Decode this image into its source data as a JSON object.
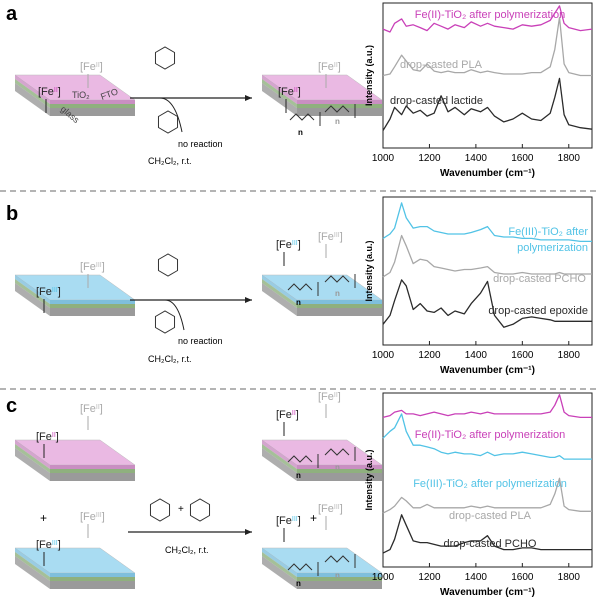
{
  "panel_labels": [
    "a",
    "b",
    "c"
  ],
  "schemes": [
    {
      "fe_labels": [
        [
          "[Fe",
          "II",
          "]"
        ],
        [
          "[Fe",
          "II",
          "]"
        ],
        [
          "[Fe",
          "II",
          "]"
        ],
        [
          "[Fe",
          "II",
          "]"
        ]
      ],
      "layers": [
        "TiO₂",
        "FTO",
        "glass"
      ],
      "no_reaction": "no reaction",
      "conditions": "CH₂Cl₂, r.t.",
      "n": [
        "n",
        "n"
      ]
    },
    {
      "fe_labels": [
        [
          "[Fe",
          "III",
          "]"
        ],
        [
          "[Fe",
          "III",
          "]"
        ],
        [
          "[Fe",
          "III",
          "]"
        ],
        [
          "[Fe",
          "III",
          "]"
        ]
      ],
      "no_reaction": "no reaction",
      "conditions": "CH₂Cl₂, r.t.",
      "n": [
        "n",
        "n"
      ]
    },
    {
      "fe_labels": [
        [
          "[Fe",
          "II",
          "]"
        ],
        [
          "[Fe",
          "II",
          "]"
        ],
        [
          "[Fe",
          "III",
          "]"
        ],
        [
          "[Fe",
          "III",
          "]"
        ],
        [
          "[Fe",
          "II",
          "]"
        ],
        [
          "[Fe",
          "II",
          "]"
        ],
        [
          "[Fe",
          "III",
          "]"
        ],
        [
          "[Fe",
          "III",
          "]"
        ]
      ],
      "plus": [
        "+",
        "+",
        "+"
      ],
      "conditions": "CH₂Cl₂, r.t.",
      "n": [
        "n",
        "n",
        "n",
        "n"
      ]
    }
  ],
  "chart_data": [
    {
      "type": "line",
      "xlabel": "Wavenumber (cm⁻¹)",
      "ylabel": "Intensity (a.u.)",
      "xlim": [
        1000,
        1900
      ],
      "xticks": [
        1000,
        1200,
        1400,
        1600,
        1800
      ],
      "ylim": [
        0,
        10
      ],
      "x": [
        1000,
        1030,
        1050,
        1080,
        1100,
        1130,
        1160,
        1190,
        1220,
        1250,
        1280,
        1310,
        1350,
        1380,
        1420,
        1450,
        1480,
        1520,
        1560,
        1600,
        1640,
        1680,
        1720,
        1740,
        1760,
        1780,
        1800,
        1850,
        1900
      ],
      "series": [
        {
          "name": "Fe(II)-TiO₂ after polymerization",
          "color": "#c940b8",
          "values": [
            8.2,
            8.0,
            8.6,
            8.9,
            8.4,
            8.5,
            8.3,
            8.1,
            8.6,
            8.4,
            8.2,
            8.5,
            8.3,
            8.7,
            8.4,
            8.6,
            8.4,
            8.3,
            8.2,
            8.5,
            8.4,
            8.5,
            8.8,
            9.3,
            9.8,
            8.6,
            8.3,
            8.1,
            8.2
          ]
        },
        {
          "name": "drop-casted PLA",
          "color": "#a8a8a8",
          "values": [
            5.0,
            5.1,
            5.6,
            6.4,
            6.0,
            5.4,
            5.3,
            5.8,
            5.3,
            5.2,
            5.3,
            5.2,
            5.2,
            5.4,
            5.2,
            5.3,
            5.2,
            5.1,
            5.1,
            5.1,
            5.2,
            5.2,
            5.6,
            6.8,
            9.0,
            5.8,
            5.2,
            5.0,
            5.0
          ]
        },
        {
          "name": "drop-casted lactide",
          "color": "#2b2b2b",
          "values": [
            1.2,
            2.0,
            2.8,
            2.3,
            2.9,
            2.4,
            2.6,
            2.2,
            2.4,
            3.6,
            2.5,
            2.8,
            2.3,
            2.7,
            2.5,
            2.8,
            2.2,
            1.8,
            2.0,
            2.4,
            2.0,
            1.9,
            2.4,
            3.5,
            4.8,
            2.3,
            1.6,
            1.4,
            1.3
          ]
        }
      ]
    },
    {
      "type": "line",
      "xlabel": "Wavenumber (cm⁻¹)",
      "ylabel": "Intensity (a.u.)",
      "xlim": [
        1000,
        1900
      ],
      "xticks": [
        1000,
        1200,
        1400,
        1600,
        1800
      ],
      "ylim": [
        0,
        10
      ],
      "x": [
        1000,
        1030,
        1050,
        1080,
        1100,
        1130,
        1160,
        1190,
        1220,
        1250,
        1280,
        1310,
        1350,
        1380,
        1420,
        1450,
        1480,
        1520,
        1560,
        1600,
        1640,
        1680,
        1720,
        1740,
        1760,
        1780,
        1800,
        1850,
        1900
      ],
      "series": [
        {
          "name": "Fe(III)-TiO₂ after polymerization",
          "color": "#52c3e6",
          "values": [
            7.2,
            7.5,
            7.9,
            9.6,
            8.6,
            7.9,
            8.0,
            8.0,
            7.7,
            7.6,
            7.5,
            7.5,
            7.5,
            7.6,
            7.8,
            8.0,
            7.4,
            7.3,
            7.3,
            7.2,
            7.2,
            7.1,
            7.1,
            7.1,
            7.1,
            7.1,
            7.1,
            7.0,
            7.0
          ]
        },
        {
          "name": "drop-casted PCHO",
          "color": "#a8a8a8",
          "values": [
            4.6,
            4.9,
            5.6,
            7.4,
            6.7,
            5.5,
            5.8,
            5.7,
            5.3,
            5.2,
            5.1,
            5.0,
            5.1,
            5.1,
            5.2,
            5.3,
            4.9,
            4.8,
            4.8,
            4.9,
            4.8,
            4.8,
            4.8,
            4.8,
            4.9,
            4.8,
            4.8,
            4.8,
            4.8
          ]
        },
        {
          "name": "drop-casted epoxide",
          "color": "#2b2b2b",
          "values": [
            1.4,
            2.0,
            3.0,
            4.4,
            4.0,
            2.4,
            2.8,
            2.3,
            2.2,
            2.5,
            2.0,
            2.3,
            2.1,
            2.8,
            3.5,
            4.3,
            2.0,
            1.2,
            1.4,
            1.8,
            1.9,
            1.8,
            1.7,
            1.6,
            1.6,
            1.6,
            1.6,
            1.6,
            1.6
          ]
        }
      ]
    },
    {
      "type": "line",
      "xlabel": "Wavenumber (cm⁻¹)",
      "ylabel": "Intensity (a.u.)",
      "xlim": [
        1000,
        1900
      ],
      "xticks": [
        1000,
        1200,
        1400,
        1600,
        1800
      ],
      "ylim": [
        0,
        10
      ],
      "x": [
        1000,
        1030,
        1050,
        1080,
        1100,
        1130,
        1160,
        1190,
        1220,
        1250,
        1280,
        1310,
        1350,
        1380,
        1420,
        1450,
        1480,
        1520,
        1560,
        1600,
        1640,
        1680,
        1720,
        1740,
        1760,
        1780,
        1800,
        1850,
        1900
      ],
      "series": [
        {
          "name": "Fe(II)-TiO₂ after polymerization",
          "color": "#c940b8",
          "values": [
            8.6,
            8.7,
            8.9,
            9.0,
            8.8,
            8.8,
            8.7,
            8.8,
            8.9,
            8.8,
            8.7,
            8.8,
            8.8,
            8.9,
            8.8,
            8.9,
            8.8,
            8.8,
            8.8,
            8.8,
            8.8,
            8.8,
            8.9,
            9.3,
            9.9,
            8.9,
            8.7,
            8.6,
            8.6
          ]
        },
        {
          "name": "Fe(III)-TiO₂ after polymerization",
          "color": "#52c3e6",
          "values": [
            7.4,
            7.8,
            8.0,
            8.8,
            7.8,
            7.0,
            7.0,
            6.9,
            6.8,
            6.6,
            6.5,
            6.6,
            6.5,
            6.5,
            6.4,
            6.6,
            6.4,
            6.5,
            6.5,
            6.6,
            6.5,
            6.4,
            6.3,
            6.3,
            6.4,
            6.2,
            6.2,
            6.2,
            6.2
          ]
        },
        {
          "name": "drop-casted PLA",
          "color": "#a8a8a8",
          "values": [
            3.1,
            3.3,
            3.5,
            4.0,
            3.8,
            3.4,
            3.4,
            3.6,
            3.4,
            3.4,
            3.4,
            3.4,
            3.4,
            3.5,
            3.4,
            3.5,
            3.4,
            3.4,
            3.4,
            3.4,
            3.4,
            3.4,
            3.6,
            4.2,
            5.1,
            3.5,
            3.3,
            3.2,
            3.2
          ]
        },
        {
          "name": "drop-casted PCHO",
          "color": "#2b2b2b",
          "values": [
            0.8,
            1.0,
            1.6,
            3.0,
            2.4,
            1.5,
            1.4,
            1.4,
            1.3,
            1.2,
            1.2,
            1.2,
            1.4,
            1.5,
            1.5,
            1.8,
            1.2,
            1.0,
            1.0,
            1.1,
            1.1,
            1.0,
            1.0,
            1.0,
            1.0,
            1.0,
            1.0,
            1.0,
            1.0
          ]
        }
      ]
    }
  ]
}
